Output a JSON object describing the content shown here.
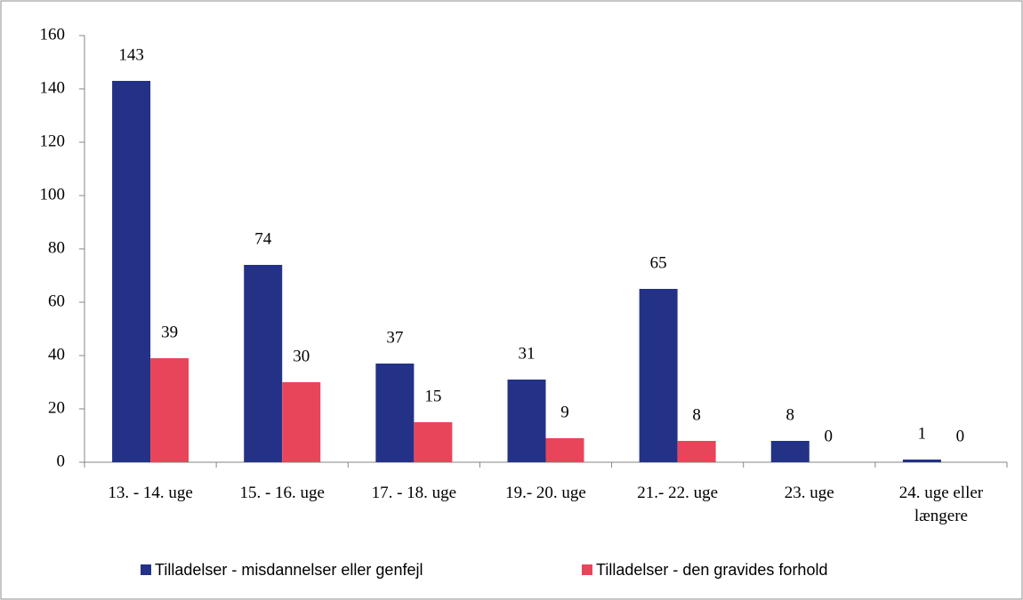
{
  "chart_data": {
    "type": "bar",
    "categories": [
      "13. - 14. uge",
      "15. - 16. uge",
      "17. - 18. uge",
      "19.- 20. uge",
      "21.- 22. uge",
      "23. uge",
      "24. uge eller længere"
    ],
    "series": [
      {
        "name": "Tilladelser - misdannelser eller genfejl",
        "color": "#233286",
        "values": [
          143,
          74,
          37,
          31,
          65,
          8,
          1
        ]
      },
      {
        "name": "Tilladelser - den gravides forhold",
        "color": "#e8455a",
        "values": [
          39,
          30,
          15,
          9,
          8,
          0,
          0
        ]
      }
    ],
    "ylim": [
      0,
      160
    ],
    "yticks": [
      0,
      20,
      40,
      60,
      80,
      100,
      120,
      140,
      160
    ],
    "grid": false,
    "legend": "bottom"
  }
}
